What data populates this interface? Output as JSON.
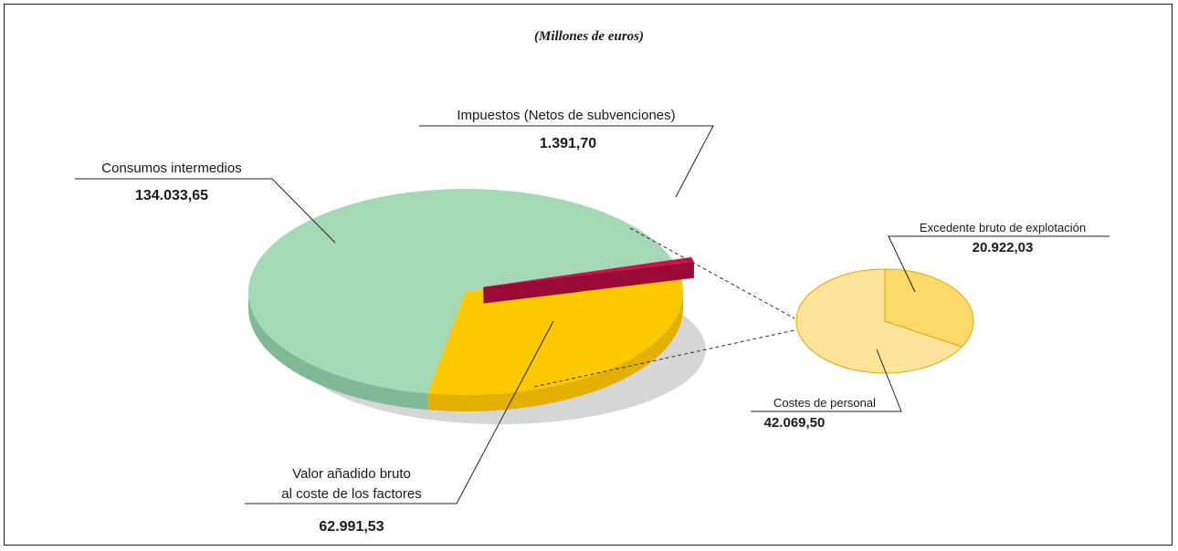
{
  "subtitle": "(Millones de euros)",
  "colors": {
    "consumos": "#a5d8b5",
    "consumos_side": "#7fb995",
    "valor": "#fcc800",
    "valor_side": "#e3b000",
    "impuestos": "#c8104a",
    "impuestos_side": "#9c0a38",
    "excedente": "#fdd96b",
    "costes": "#fee39a",
    "shadow": "#d6d6d6"
  },
  "chart_data": [
    {
      "type": "pie",
      "title": "",
      "unit": "Millones de euros",
      "slices": [
        {
          "label": "Consumos intermedios",
          "value": 134033.65,
          "display": "134.033,65"
        },
        {
          "label": "Valor añadido bruto al coste de los factores",
          "label_lines": [
            "Valor añadido bruto",
            "al coste de los factores"
          ],
          "value": 62991.53,
          "display": "62.991,53"
        },
        {
          "label": "Impuestos (Netos de subvenciones)",
          "value": 1391.7,
          "display": "1.391,70"
        }
      ]
    },
    {
      "type": "pie",
      "title": "",
      "unit": "Millones de euros",
      "slices": [
        {
          "label": "Excedente bruto de explotación",
          "value": 20922.03,
          "display": "20.922,03"
        },
        {
          "label": "Costes de personal",
          "value": 42069.5,
          "display": "42.069,50"
        }
      ]
    }
  ]
}
